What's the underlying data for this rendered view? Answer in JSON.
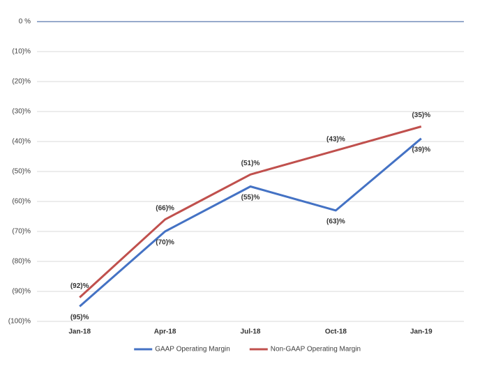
{
  "chart_data": {
    "type": "line",
    "categories": [
      "Jan-18",
      "Apr-18",
      "Jul-18",
      "Oct-18",
      "Jan-19"
    ],
    "series": [
      {
        "name": "GAAP Operating Margin",
        "color": "#4472c4",
        "values": [
          -95,
          -70,
          -55,
          -63,
          -39
        ],
        "value_labels": [
          "(95)%",
          "(70)%",
          "(55)%",
          "(63)%",
          "(39)%"
        ]
      },
      {
        "name": "Non-GAAP Operating Margin",
        "color": "#c0504d",
        "values": [
          -92,
          -66,
          -51,
          -43,
          -35
        ],
        "value_labels": [
          "(92)%",
          "(66)%",
          "(51)%",
          "(43)%",
          "(35)%"
        ]
      }
    ],
    "ylim": [
      -100,
      0
    ],
    "yticks": [
      {
        "value": 0,
        "label": "0 %"
      },
      {
        "value": -10,
        "label": "(10)%"
      },
      {
        "value": -20,
        "label": "(20)%"
      },
      {
        "value": -30,
        "label": "(30)%"
      },
      {
        "value": -40,
        "label": "(40)%"
      },
      {
        "value": -50,
        "label": "(50)%"
      },
      {
        "value": -60,
        "label": "(60)%"
      },
      {
        "value": -70,
        "label": "(70)%"
      },
      {
        "value": -80,
        "label": "(80)%"
      },
      {
        "value": -90,
        "label": "(90)%"
      },
      {
        "value": -100,
        "label": "(100)%"
      }
    ],
    "grid": true,
    "legend": "bottom"
  }
}
